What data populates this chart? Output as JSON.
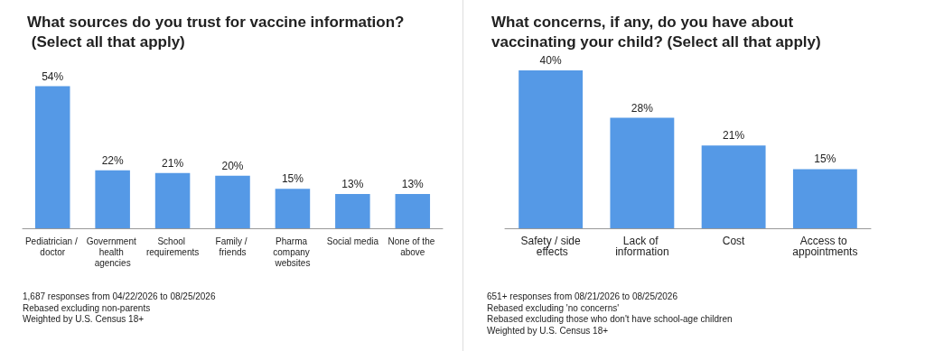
{
  "chart_data": [
    {
      "type": "bar",
      "title": "What sources do you trust for vaccine information? (Select all that apply)",
      "categories": [
        "Pediatrician / doctor",
        "Government health agencies",
        "School requirements",
        "Family / friends",
        "Pharma company websites",
        "Social media",
        "None of the above"
      ],
      "values": [
        54,
        22,
        21,
        20,
        15,
        13,
        13
      ],
      "color": "#5599e6",
      "value_labels": [
        "54%",
        "22%",
        "21%",
        "20%",
        "15%",
        "13%",
        "13%"
      ],
      "annotations": [
        "1,687 responses from 04/22/2026 to 08/25/2026",
        "Rebased excluding non-parents",
        "Weighted by U.S. Census 18+"
      ]
    },
    {
      "type": "bar",
      "title": "What concerns, if any, do you have about vaccinating your child? (Select all that apply)",
      "categories": [
        "Safety / side effects",
        "Lack of information",
        "Cost",
        "Access to appointments"
      ],
      "values": [
        40,
        28,
        21,
        15
      ],
      "color": "#5599e6",
      "value_labels": [
        "40%",
        "28%",
        "21%",
        "15%"
      ],
      "annotations": [
        "651+ responses from 08/21/2026 to 08/25/2026",
        "Rebased excluding 'no concerns'",
        "Rebased excluding those who don't have school-age children",
        "Weighted by U.S. Census 18+"
      ]
    }
  ]
}
